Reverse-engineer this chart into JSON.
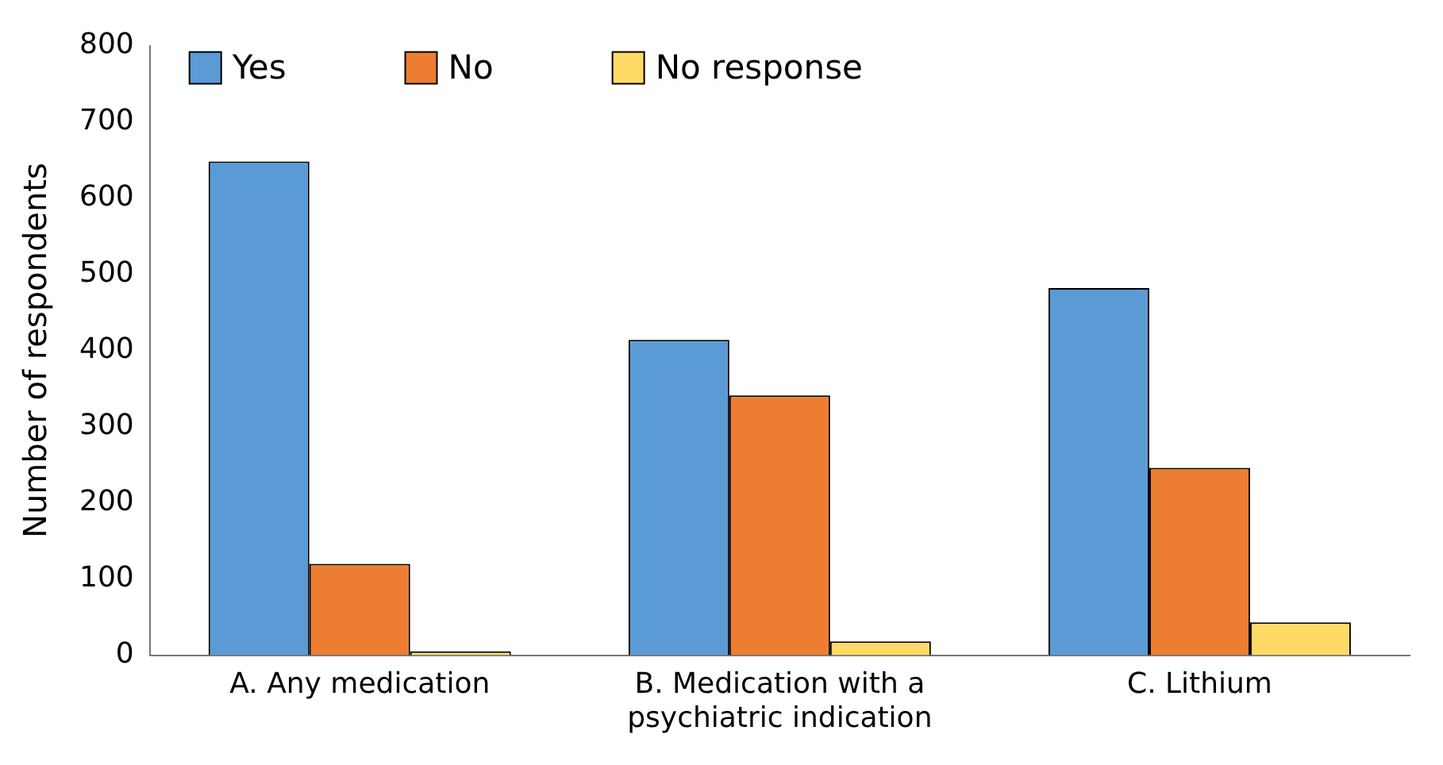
{
  "chart_data": {
    "type": "bar",
    "ylabel": "Number of respondents",
    "categories": [
      "A. Any medication",
      "B. Medication with a psychiatric indication",
      "C. Lithium"
    ],
    "series": [
      {
        "name": "Yes",
        "color": "#5b9bd5",
        "values": [
          648,
          414,
          482
        ]
      },
      {
        "name": "No",
        "color": "#ed7d31",
        "values": [
          120,
          341,
          246
        ]
      },
      {
        "name": "No response",
        "color": "#ffd966",
        "values": [
          5,
          18,
          43
        ]
      }
    ],
    "ylim": [
      0,
      800
    ],
    "yticks": [
      0,
      100,
      200,
      300,
      400,
      500,
      600,
      700,
      800
    ],
    "grid": false,
    "legend": "top"
  }
}
